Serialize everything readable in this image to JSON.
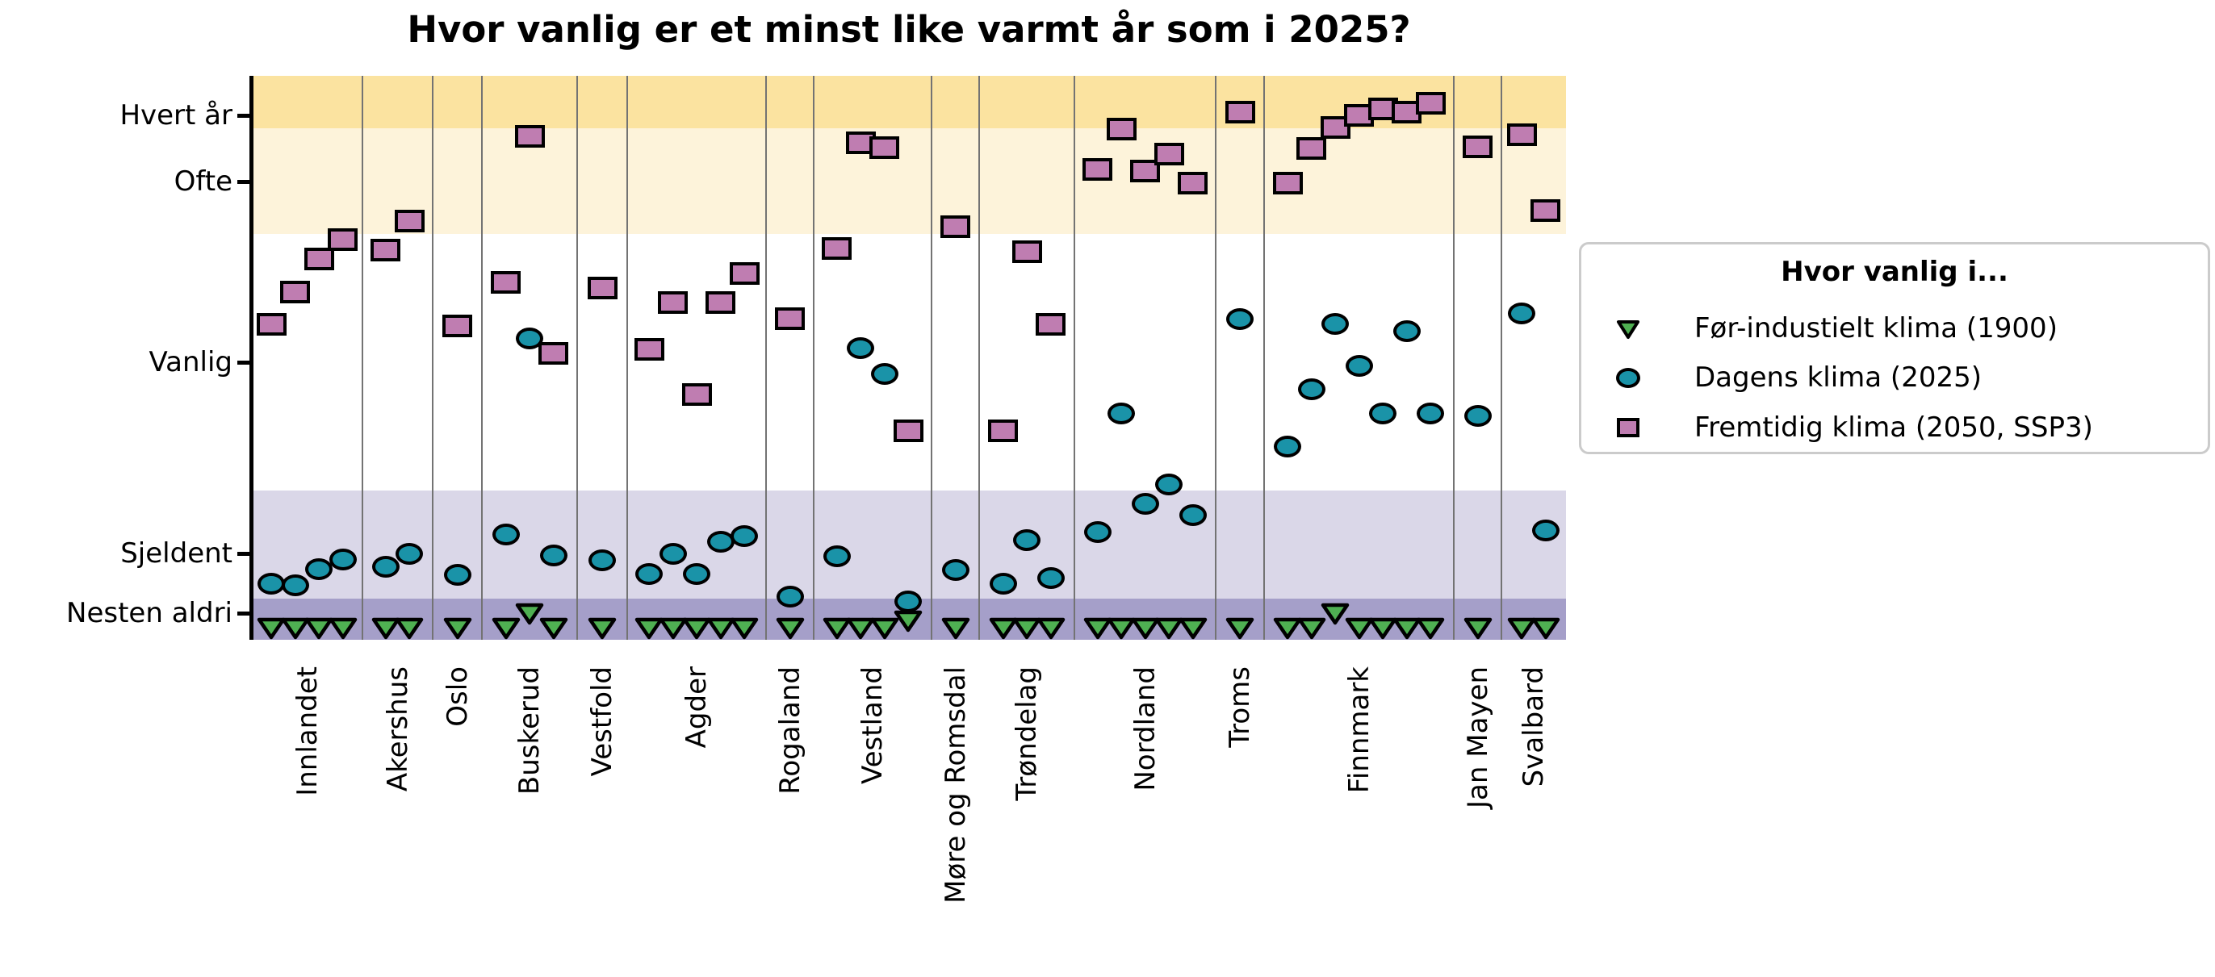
{
  "title": "Hvor vanlig er et minst like varmt år som i 2025?",
  "y_axis": {
    "ticks": [
      {
        "label": "Hvert år",
        "v": 4
      },
      {
        "label": "Ofte",
        "v": 3
      },
      {
        "label": "Vanlig",
        "v": 2
      },
      {
        "label": "Sjeldent",
        "v": 1
      },
      {
        "label": "Nesten aldri",
        "v": 0
      }
    ]
  },
  "legend": {
    "title": "Hvor vanlig i...",
    "items": [
      {
        "label": "Før-industielt klima (1900)",
        "marker": "triangle-down-icon",
        "color": "#4fb052"
      },
      {
        "label": "Dagens klima (2025)",
        "marker": "circle-icon",
        "color": "#1a93a8"
      },
      {
        "label": "Fremtidig klima (2050, SSP3)",
        "marker": "square-icon",
        "color": "#bf7db1"
      }
    ]
  },
  "chart_data": {
    "type": "scatter",
    "title": "Hvor vanlig er et minst like varmt år som i 2025?",
    "xlabel": "",
    "ylabel": "",
    "legend_position": "right",
    "grid": false,
    "y_scale_note": "Categorical frequency scale in band units: 0=Nesten aldri, 1=Sjeldent, 2=Vanlig, 3=Ofte, 4=Hvert år; values between ticks are interpolated",
    "series_defs": [
      {
        "key": "pre_1900",
        "name": "Før-industielt klima (1900)",
        "marker": "triangle-down",
        "color": "#4fb052"
      },
      {
        "key": "current_2025",
        "name": "Dagens klima (2025)",
        "marker": "circle",
        "color": "#1a93a8"
      },
      {
        "key": "future_2050",
        "name": "Fremtidig klima (2050, SSP3)",
        "marker": "square",
        "color": "#bf7db1"
      }
    ],
    "bands": [
      {
        "label": "Hvert år",
        "v_from": 3.8,
        "v_to": 4.6,
        "color": "#fbe3a0"
      },
      {
        "label": "Ofte",
        "v_from": 2.71,
        "v_to": 3.8,
        "color": "#fdf3da"
      },
      {
        "label": "Vanlig",
        "v_from": 1.33,
        "v_to": 2.71,
        "color": "#ffffff"
      },
      {
        "label": "Sjeldent",
        "v_from": 0.24,
        "v_to": 1.33,
        "color": "#dad7e8"
      },
      {
        "label": "Nesten aldri",
        "v_from": -0.45,
        "v_to": 0.24,
        "color": "#a59fc9"
      }
    ],
    "regions": [
      {
        "name": "Innlandet",
        "stations": [
          {
            "pre_1900": -0.24,
            "current_2025": 0.5,
            "future_2050": 2.21
          },
          {
            "pre_1900": -0.24,
            "current_2025": 0.46,
            "future_2050": 2.39
          },
          {
            "pre_1900": -0.24,
            "current_2025": 0.74,
            "future_2050": 2.57
          },
          {
            "pre_1900": -0.24,
            "current_2025": 0.9,
            "future_2050": 2.68
          }
        ]
      },
      {
        "name": "Akershus",
        "stations": [
          {
            "pre_1900": -0.24,
            "current_2025": 0.78,
            "future_2050": 2.62
          },
          {
            "pre_1900": -0.24,
            "current_2025": 1.0,
            "future_2050": 2.78
          }
        ]
      },
      {
        "name": "Oslo",
        "stations": [
          {
            "pre_1900": -0.24,
            "current_2025": 0.64,
            "future_2050": 2.2
          }
        ]
      },
      {
        "name": "Buskerud",
        "stations": [
          {
            "pre_1900": -0.24,
            "current_2025": 1.1,
            "future_2050": 2.44
          },
          {
            "pre_1900": 0.0,
            "current_2025": 2.13,
            "future_2050": 3.68
          },
          {
            "pre_1900": -0.24,
            "current_2025": 0.97,
            "future_2050": 2.05
          }
        ]
      },
      {
        "name": "Vestfold",
        "stations": [
          {
            "pre_1900": -0.24,
            "current_2025": 0.88,
            "future_2050": 2.41
          }
        ]
      },
      {
        "name": "Agder",
        "stations": [
          {
            "pre_1900": -0.24,
            "current_2025": 0.66,
            "future_2050": 2.07
          },
          {
            "pre_1900": -0.24,
            "current_2025": 1.0,
            "future_2050": 2.33
          },
          {
            "pre_1900": -0.24,
            "current_2025": 0.66,
            "future_2050": 1.83
          },
          {
            "pre_1900": -0.24,
            "current_2025": 1.06,
            "future_2050": 2.33
          },
          {
            "pre_1900": -0.24,
            "current_2025": 1.09,
            "future_2050": 2.49
          }
        ]
      },
      {
        "name": "Rogaland",
        "stations": [
          {
            "pre_1900": -0.24,
            "current_2025": 0.28,
            "future_2050": 2.24
          }
        ]
      },
      {
        "name": "Vestland",
        "stations": [
          {
            "pre_1900": -0.24,
            "current_2025": 0.95,
            "future_2050": 2.63
          },
          {
            "pre_1900": -0.24,
            "current_2025": 2.08,
            "future_2050": 3.59
          },
          {
            "pre_1900": -0.24,
            "current_2025": 1.94,
            "future_2050": 3.51
          },
          {
            "pre_1900": -0.12,
            "current_2025": 0.19,
            "future_2050": 1.64
          }
        ]
      },
      {
        "name": "Møre og Romsdal",
        "stations": [
          {
            "pre_1900": -0.24,
            "current_2025": 0.72,
            "future_2050": 2.75
          }
        ]
      },
      {
        "name": "Trøndelag",
        "stations": [
          {
            "pre_1900": -0.24,
            "current_2025": 0.5,
            "future_2050": 1.64
          },
          {
            "pre_1900": -0.24,
            "current_2025": 1.07,
            "future_2050": 2.61
          },
          {
            "pre_1900": -0.24,
            "current_2025": 0.59,
            "future_2050": 2.21
          }
        ]
      },
      {
        "name": "Nordland",
        "stations": [
          {
            "pre_1900": -0.24,
            "current_2025": 1.11,
            "future_2050": 3.18
          },
          {
            "pre_1900": -0.24,
            "current_2025": 1.73,
            "future_2050": 3.79
          },
          {
            "pre_1900": -0.24,
            "current_2025": 1.26,
            "future_2050": 3.16
          },
          {
            "pre_1900": -0.24,
            "current_2025": 1.36,
            "future_2050": 3.41
          },
          {
            "pre_1900": -0.24,
            "current_2025": 1.2,
            "future_2050": 2.99
          }
        ]
      },
      {
        "name": "Troms",
        "stations": [
          {
            "pre_1900": -0.24,
            "current_2025": 2.24,
            "future_2050": 4.05
          }
        ]
      },
      {
        "name": "Finnmark",
        "stations": [
          {
            "pre_1900": -0.24,
            "current_2025": 1.56,
            "future_2050": 2.99
          },
          {
            "pre_1900": -0.24,
            "current_2025": 1.86,
            "future_2050": 3.5
          },
          {
            "pre_1900": 0.0,
            "current_2025": 2.21,
            "future_2050": 3.82
          },
          {
            "pre_1900": -0.24,
            "current_2025": 1.98,
            "future_2050": 4.0
          },
          {
            "pre_1900": -0.24,
            "current_2025": 1.73,
            "future_2050": 4.1
          },
          {
            "pre_1900": -0.24,
            "current_2025": 2.17,
            "future_2050": 4.05
          },
          {
            "pre_1900": -0.24,
            "current_2025": 1.73,
            "future_2050": 4.18
          }
        ]
      },
      {
        "name": "Jan Mayen",
        "stations": [
          {
            "pre_1900": -0.24,
            "current_2025": 1.72,
            "future_2050": 3.53
          }
        ]
      },
      {
        "name": "Svalbard",
        "stations": [
          {
            "pre_1900": -0.24,
            "current_2025": 2.27,
            "future_2050": 3.71
          },
          {
            "pre_1900": -0.24,
            "current_2025": 1.12,
            "future_2050": 2.84
          }
        ]
      }
    ]
  }
}
